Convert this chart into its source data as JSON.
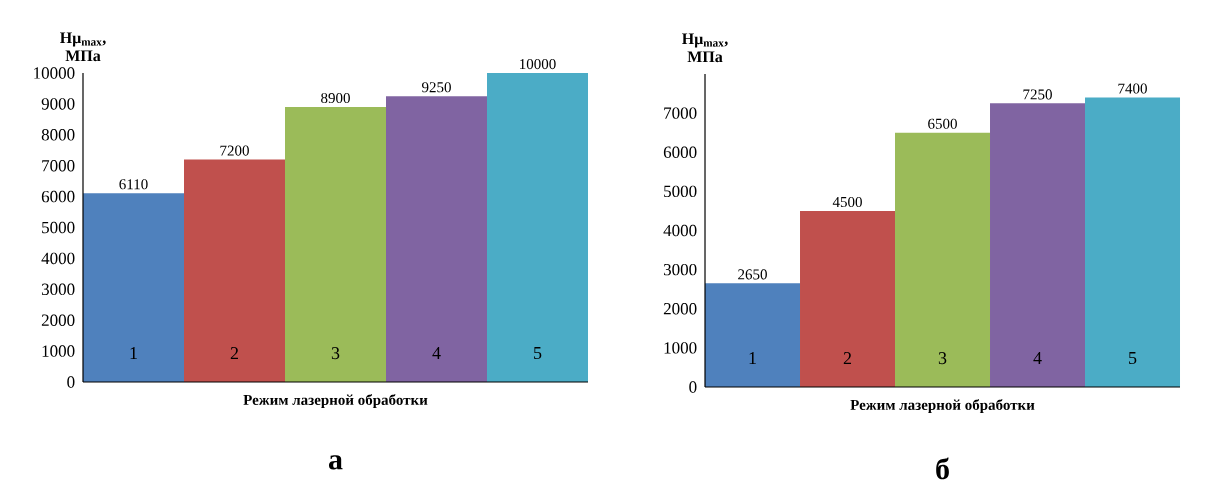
{
  "chart_data": [
    {
      "type": "bar",
      "categories": [
        "1",
        "2",
        "3",
        "4",
        "5"
      ],
      "values": [
        6110,
        7200,
        8900,
        9250,
        10000
      ],
      "colors": [
        "#4f81bd",
        "#c0504d",
        "#9bbb59",
        "#8064a2",
        "#4bacc6"
      ],
      "ylabel": "Hμ$_{max}$, МПа",
      "xlabel": "Режим лазерной обработки",
      "ylim": [
        0,
        10000
      ],
      "yticks": [
        0,
        1000,
        2000,
        3000,
        4000,
        5000,
        6000,
        7000,
        8000,
        9000,
        10000
      ],
      "data_labels": true,
      "annotations": [
        "а"
      ]
    },
    {
      "type": "bar",
      "categories": [
        "1",
        "2",
        "3",
        "4",
        "5"
      ],
      "values": [
        2650,
        4500,
        6500,
        7250,
        7400
      ],
      "colors": [
        "#4f81bd",
        "#c0504d",
        "#9bbb59",
        "#8064a2",
        "#4bacc6"
      ],
      "ylabel": "Hμ$_{max}$, МПа",
      "xlabel": "Режим лазерной обработки",
      "ylim": [
        0,
        8000
      ],
      "yticks": [
        0,
        1000,
        2000,
        3000,
        4000,
        5000,
        6000,
        7000
      ],
      "data_labels": true,
      "annotations": [
        "б"
      ]
    }
  ]
}
